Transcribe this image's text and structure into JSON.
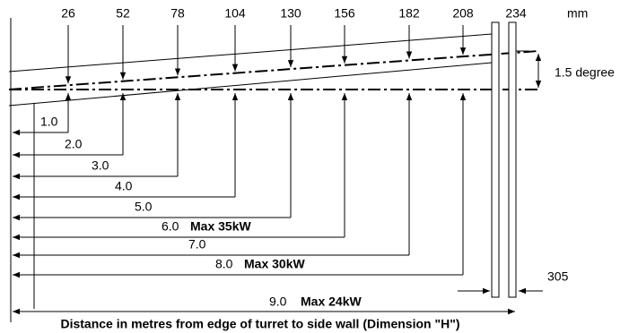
{
  "scale": {
    "unit": "mm",
    "marks": [
      "26",
      "52",
      "78",
      "104",
      "130",
      "156",
      "182",
      "208",
      "234"
    ]
  },
  "angle": "1.5 degree",
  "wall_gap": "305",
  "distances": [
    {
      "label": "1.0"
    },
    {
      "label": "2.0"
    },
    {
      "label": "3.0"
    },
    {
      "label": "4.0"
    },
    {
      "label": "5.0"
    },
    {
      "label": "6.0",
      "note": "Max 35kW"
    },
    {
      "label": "7.0"
    },
    {
      "label": "8.0",
      "note": "Max 30kW"
    }
  ],
  "total": {
    "label": "9.0",
    "note": "Max 24kW"
  },
  "caption": "Distance in metres from edge of turret to side wall (Dimension \"H\")"
}
